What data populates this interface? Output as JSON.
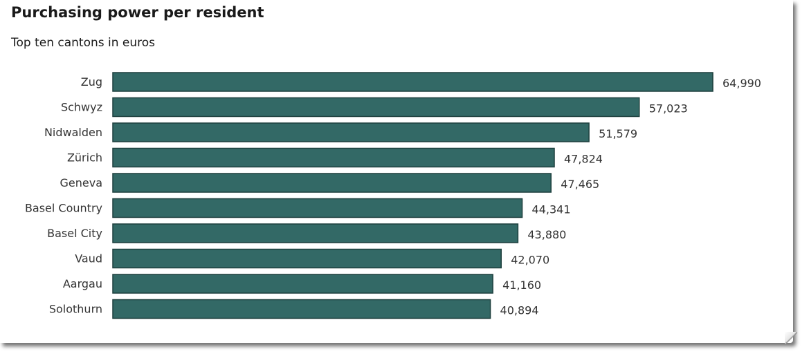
{
  "chart_data": {
    "type": "bar",
    "orientation": "horizontal",
    "title": "Purchasing power per resident",
    "subtitle": "Top ten cantons in euros",
    "xlabel": "",
    "ylabel": "",
    "categories": [
      "Zug",
      "Schwyz",
      "Nidwalden",
      "Zürich",
      "Geneva",
      "Basel Country",
      "Basel City",
      "Vaud",
      "Aargau",
      "Solothurn"
    ],
    "values": [
      64990,
      57023,
      51579,
      47824,
      47465,
      44341,
      43880,
      42070,
      41160,
      40894
    ],
    "value_labels": [
      "64,990",
      "57,023",
      "51,579",
      "47,824",
      "47,465",
      "44,341",
      "43,880",
      "42,070",
      "41,160",
      "40,894"
    ],
    "xlim": [
      0,
      64990
    ],
    "grid": false,
    "legend": "none",
    "colors": {
      "bar_fill": "#336966",
      "bar_stroke": "#1d3f3d",
      "text": "#333333"
    }
  }
}
